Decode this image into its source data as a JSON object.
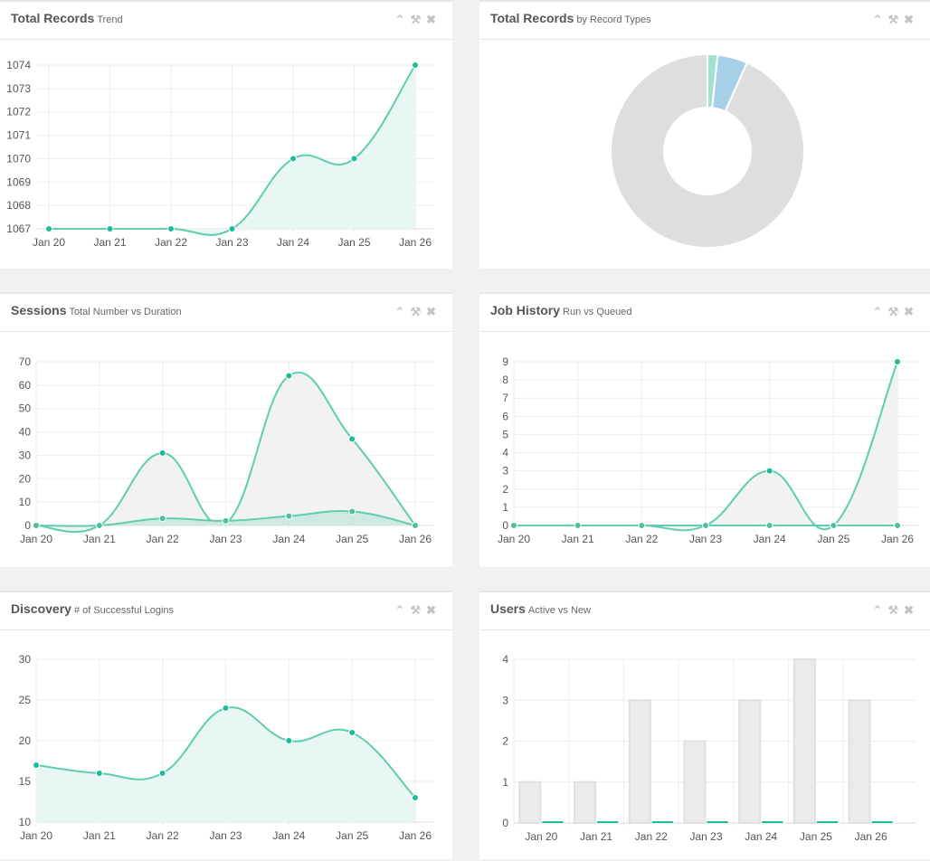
{
  "panels": [
    {
      "title": "Total Records",
      "subtitle": "Trend"
    },
    {
      "title": "Total Records",
      "subtitle": "by Record Types"
    },
    {
      "title": "Sessions",
      "subtitle": "Total Number vs Duration"
    },
    {
      "title": "Job History",
      "subtitle": "Run vs Queued"
    },
    {
      "title": "Discovery",
      "subtitle": "# of Successful Logins"
    },
    {
      "title": "Users",
      "subtitle": "Active vs New"
    }
  ],
  "icons": {
    "collapse": "chevron-up-icon",
    "settings": "wrench-icon",
    "close": "close-icon"
  },
  "colors": {
    "accent": "#1abc9c",
    "line": "#5ecdb0",
    "fill": "#e8f7f3",
    "gray_fill": "#f2f2f2",
    "pie": [
      "#a3e0d0",
      "#a6cfe8",
      "#dedede"
    ],
    "bar": "#ebebeb"
  },
  "chart_data": [
    {
      "type": "area",
      "categories": [
        "Jan 20",
        "Jan 21",
        "Jan 22",
        "Jan 23",
        "Jan 24",
        "Jan 25",
        "Jan 26"
      ],
      "series": [
        {
          "values": [
            1067,
            1067,
            1067,
            1067,
            1070,
            1070,
            1074
          ]
        }
      ],
      "ylim": [
        1067,
        1074
      ],
      "yticks": [
        1067,
        1068,
        1069,
        1070,
        1071,
        1072,
        1073,
        1074
      ],
      "grid": true
    },
    {
      "type": "pie",
      "donut": true,
      "values": [
        1.7,
        5,
        93.3
      ]
    },
    {
      "type": "area",
      "categories": [
        "Jan 20",
        "Jan 21",
        "Jan 22",
        "Jan 23",
        "Jan 24",
        "Jan 25",
        "Jan 26"
      ],
      "series": [
        {
          "values": [
            0,
            0,
            31,
            1,
            64,
            37,
            0
          ]
        },
        {
          "values": [
            0,
            0,
            3,
            2,
            4,
            6,
            0
          ]
        }
      ],
      "ylim": [
        0,
        70
      ],
      "yticks": [
        0,
        10,
        20,
        30,
        40,
        50,
        60,
        70
      ],
      "grid": true
    },
    {
      "type": "area",
      "categories": [
        "Jan 20",
        "Jan 21",
        "Jan 22",
        "Jan 23",
        "Jan 24",
        "Jan 25",
        "Jan 26"
      ],
      "series": [
        {
          "values": [
            0,
            0,
            0,
            0,
            3,
            0,
            9
          ]
        },
        {
          "values": [
            0,
            0,
            0,
            0,
            0,
            0,
            0
          ]
        }
      ],
      "ylim": [
        0,
        9
      ],
      "yticks": [
        0,
        1,
        2,
        3,
        4,
        5,
        6,
        7,
        8,
        9
      ],
      "grid": true
    },
    {
      "type": "area",
      "categories": [
        "Jan 20",
        "Jan 21",
        "Jan 22",
        "Jan 23",
        "Jan 24",
        "Jan 25",
        "Jan 26"
      ],
      "series": [
        {
          "values": [
            17,
            16,
            16,
            24,
            20,
            21,
            13
          ]
        }
      ],
      "ylim": [
        10,
        30
      ],
      "yticks": [
        10,
        15,
        20,
        25,
        30
      ],
      "grid": true
    },
    {
      "type": "bar",
      "categories": [
        "Jan 20",
        "Jan 21",
        "Jan 22",
        "Jan 23",
        "Jan 24",
        "Jan 25",
        "Jan 26"
      ],
      "series": [
        {
          "values": [
            1,
            1,
            3,
            2,
            3,
            4,
            3
          ]
        },
        {
          "values": [
            0,
            0,
            0,
            0,
            0,
            0,
            0
          ]
        }
      ],
      "ylim": [
        0,
        4
      ],
      "yticks": [
        0,
        1,
        2,
        3,
        4
      ],
      "grid": true
    }
  ]
}
